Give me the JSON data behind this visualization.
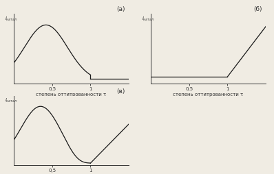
{
  "title_a": "(а)",
  "title_b": "(б)",
  "title_v": "(в)",
  "xlabel": "степень оттитрованности τ",
  "tick_05": "0,5",
  "tick_1": "1",
  "bg_color": "#f0ece3",
  "line_color": "#1a1a1a",
  "axis_color": "#333333",
  "ylabel_text": "I",
  "ylabel_sub": "катал"
}
